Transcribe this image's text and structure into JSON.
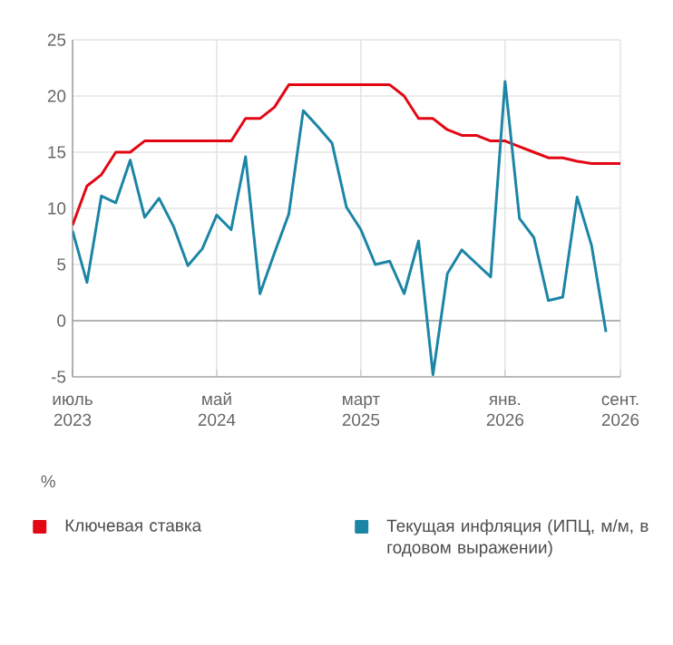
{
  "chart_data": {
    "type": "line",
    "ylabel": "%",
    "x": [
      "2023-07",
      "2023-08",
      "2023-09",
      "2023-10",
      "2023-11",
      "2023-12",
      "2024-01",
      "2024-02",
      "2024-03",
      "2024-04",
      "2024-05",
      "2024-06",
      "2024-07",
      "2024-08",
      "2024-09",
      "2024-10",
      "2024-11",
      "2024-12",
      "2025-01",
      "2025-02",
      "2025-03",
      "2025-04",
      "2025-05",
      "2025-06",
      "2025-07",
      "2025-08",
      "2025-09",
      "2025-10",
      "2025-11",
      "2025-12",
      "2026-01",
      "2026-02",
      "2026-03",
      "2026-04",
      "2026-05",
      "2026-06",
      "2026-07",
      "2026-08",
      "2026-09"
    ],
    "series": [
      {
        "name": "Ключевая ставка",
        "color": "#e30613",
        "values": [
          8.5,
          12,
          13,
          15,
          15,
          16,
          16,
          16,
          16,
          16,
          16,
          16,
          18,
          18,
          19,
          21,
          21,
          21,
          21,
          21,
          21,
          21,
          21,
          20,
          18,
          18,
          17,
          16.5,
          16.5,
          16,
          16,
          15.5,
          15,
          14.5,
          14.5,
          14.2,
          14,
          14,
          14
        ]
      },
      {
        "name": "Текущая инфляция  (ИПЦ, м/м, в годовом выражении)",
        "color": "#1b85a6",
        "values": [
          8.0,
          3.4,
          11.1,
          10.5,
          14.3,
          9.2,
          10.9,
          8.4,
          4.9,
          6.4,
          9.4,
          8.1,
          14.6,
          2.4,
          6.0,
          9.5,
          18.7,
          17.3,
          15.8,
          10.1,
          8.1,
          5.0,
          5.3,
          2.4,
          7.1,
          -4.8,
          4.2,
          6.3,
          5.1,
          3.9,
          21.3,
          9.1,
          7.4,
          1.8,
          2.1,
          11.0,
          6.7,
          -1.0,
          null
        ]
      }
    ],
    "xlim": [
      "2023-07",
      "2026-09"
    ],
    "xticks": [
      {
        "value": "2023-07",
        "label": "июль 2023"
      },
      {
        "value": "2024-05",
        "label": "май 2024"
      },
      {
        "value": "2025-03",
        "label": "март 2025"
      },
      {
        "value": "2026-01",
        "label": "янв. 2026"
      },
      {
        "value": "2026-09",
        "label": "сент. 2026"
      }
    ],
    "ylim": [
      -5,
      25
    ],
    "yticks": [
      -5,
      0,
      5,
      10,
      15,
      20,
      25
    ],
    "ref_lines": [
      {
        "axis": "y",
        "value": 0,
        "color": "#a0a0a0"
      }
    ],
    "grid": true,
    "legend": "bottom",
    "marker": "none",
    "line_style": "solid"
  }
}
